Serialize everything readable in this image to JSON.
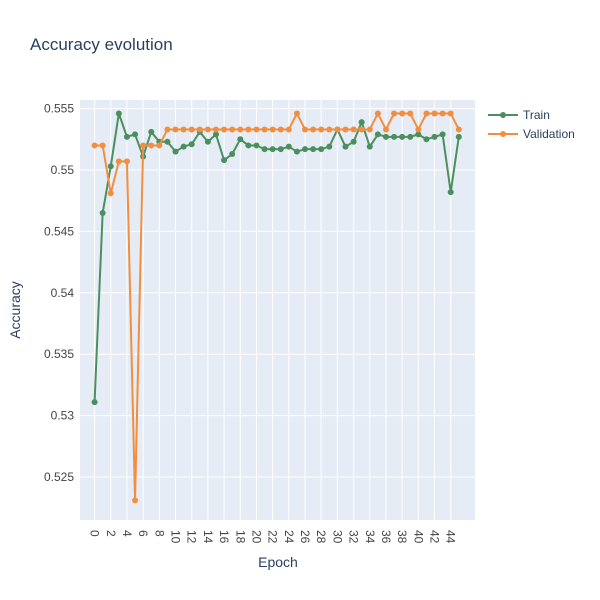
{
  "chart_data": {
    "type": "line",
    "title": "Accuracy evolution",
    "xlabel": "Epoch",
    "ylabel": "Accuracy",
    "xlim": [
      -1.8,
      47
    ],
    "ylim": [
      0.5215,
      0.5557
    ],
    "xticks": [
      0,
      2,
      4,
      6,
      8,
      10,
      12,
      14,
      16,
      18,
      20,
      22,
      24,
      26,
      28,
      30,
      32,
      34,
      36,
      38,
      40,
      42,
      44
    ],
    "yticks": [
      0.525,
      0.53,
      0.535,
      0.54,
      0.545,
      0.55,
      0.555
    ],
    "ytick_labels": [
      "0.525",
      "0.53",
      "0.535",
      "0.54",
      "0.545",
      "0.55",
      "0.555"
    ],
    "grid": true,
    "legend_position": "top-right",
    "series": [
      {
        "name": "Train",
        "color": "#4c8f5e",
        "x": [
          0,
          1,
          2,
          3,
          4,
          5,
          6,
          7,
          8,
          9,
          10,
          11,
          12,
          13,
          14,
          15,
          16,
          17,
          18,
          19,
          20,
          21,
          22,
          23,
          24,
          25,
          26,
          27,
          28,
          29,
          30,
          31,
          32,
          33,
          34,
          35,
          36,
          37,
          38,
          39,
          40,
          41,
          42,
          43,
          44,
          45
        ],
        "values": [
          0.5311,
          0.5465,
          0.5503,
          0.5546,
          0.5527,
          0.5529,
          0.5511,
          0.5531,
          0.5523,
          0.5523,
          0.5515,
          0.5519,
          0.5521,
          0.5531,
          0.5523,
          0.5529,
          0.5508,
          0.5513,
          0.5525,
          0.552,
          0.552,
          0.5517,
          0.5517,
          0.5517,
          0.5519,
          0.5515,
          0.5517,
          0.5517,
          0.5517,
          0.5519,
          0.5533,
          0.5519,
          0.5523,
          0.5539,
          0.5519,
          0.5529,
          0.5527,
          0.5527,
          0.5527,
          0.5527,
          0.5529,
          0.5525,
          0.5527,
          0.5529,
          0.5482,
          0.5527
        ]
      },
      {
        "name": "Validation",
        "color": "#f28e3f",
        "x": [
          0,
          1,
          2,
          3,
          4,
          5,
          6,
          7,
          8,
          9,
          10,
          11,
          12,
          13,
          14,
          15,
          16,
          17,
          18,
          19,
          20,
          21,
          22,
          23,
          24,
          25,
          26,
          27,
          28,
          29,
          30,
          31,
          32,
          33,
          34,
          35,
          36,
          37,
          38,
          39,
          40,
          41,
          42,
          43,
          44,
          45
        ],
        "values": [
          0.552,
          0.552,
          0.5481,
          0.5507,
          0.5507,
          0.5231,
          0.552,
          0.552,
          0.552,
          0.5533,
          0.5533,
          0.5533,
          0.5533,
          0.5533,
          0.5533,
          0.5533,
          0.5533,
          0.5533,
          0.5533,
          0.5533,
          0.5533,
          0.5533,
          0.5533,
          0.5533,
          0.5533,
          0.5546,
          0.5533,
          0.5533,
          0.5533,
          0.5533,
          0.5533,
          0.5533,
          0.5533,
          0.5533,
          0.5533,
          0.5546,
          0.5533,
          0.5546,
          0.5546,
          0.5546,
          0.5533,
          0.5546,
          0.5546,
          0.5546,
          0.5546,
          0.5533
        ]
      }
    ]
  }
}
